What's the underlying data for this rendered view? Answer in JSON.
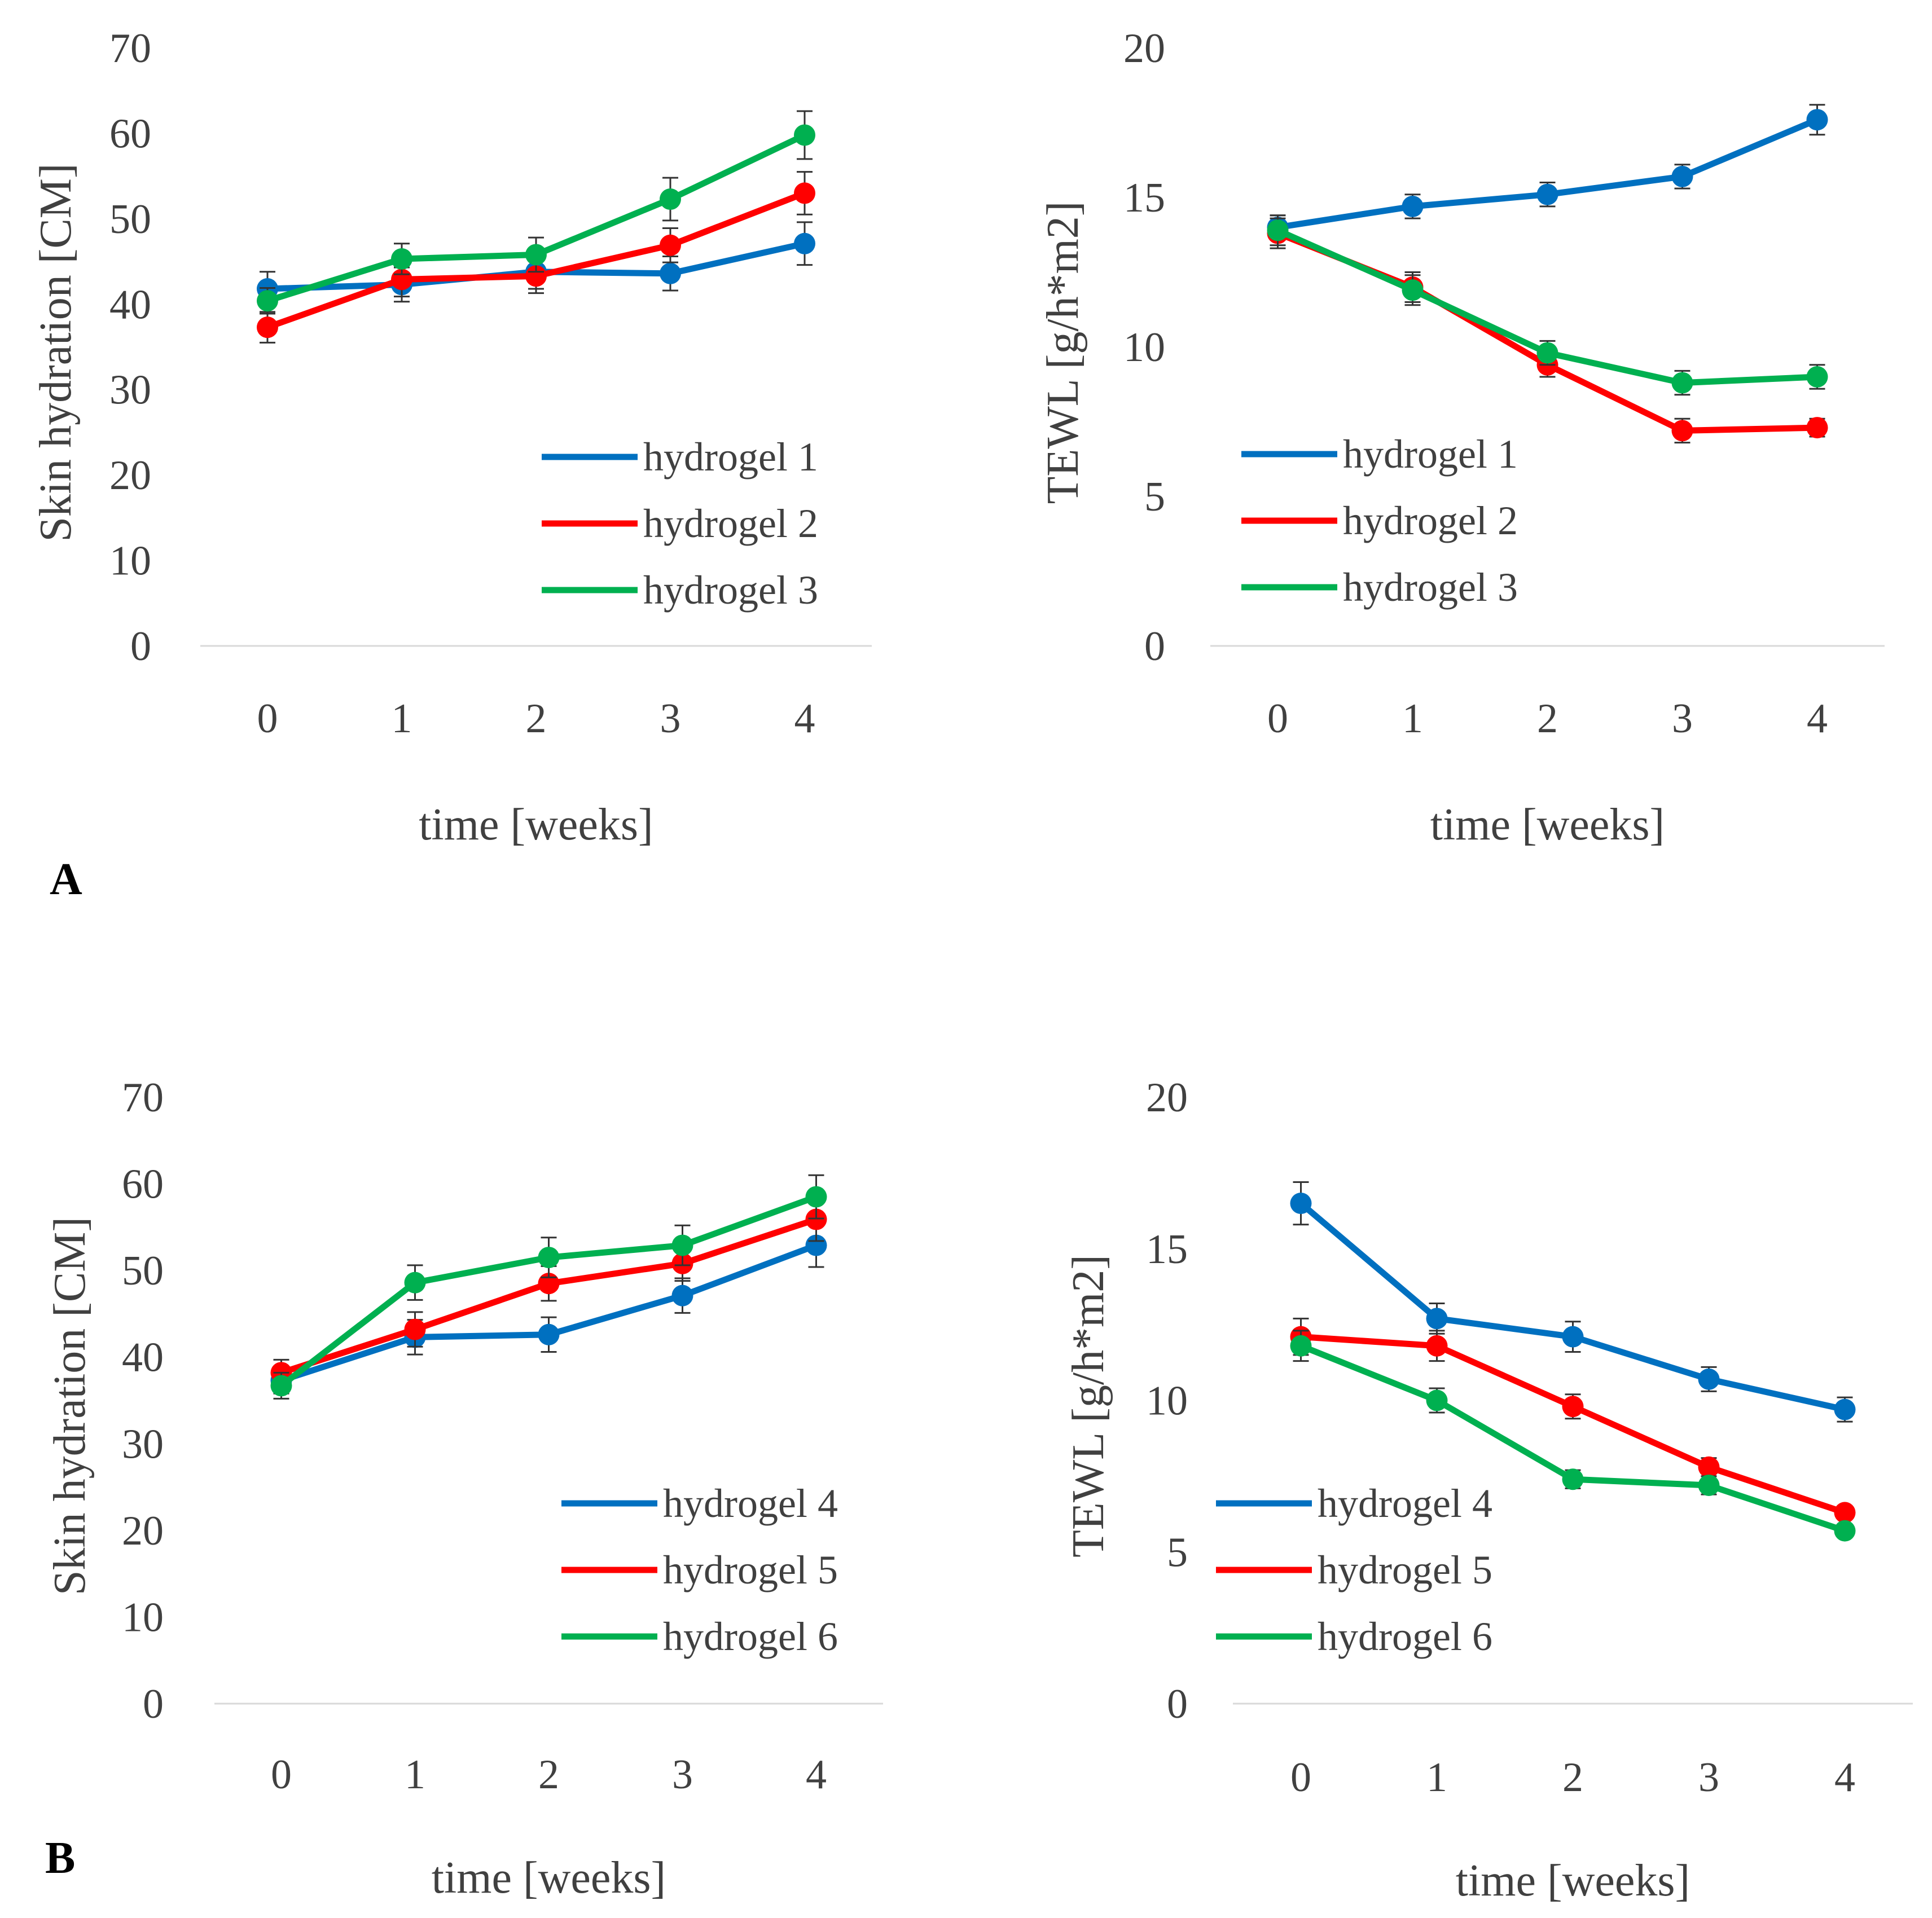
{
  "panel_labels": [
    "A",
    "B"
  ],
  "chart_data": [
    {
      "type": "line",
      "panel": "A",
      "title": "",
      "xlabel": "time [weeks]",
      "ylabel": "Skin hydration [CM]",
      "x": [
        0,
        1,
        2,
        3,
        4
      ],
      "ylim": [
        0,
        70
      ],
      "yticks": [
        0,
        10,
        20,
        30,
        40,
        50,
        60,
        70
      ],
      "legend": "right",
      "series": [
        {
          "name": "hydrogel 1",
          "color": "#0070C0",
          "values": [
            41.8,
            42.3,
            43.8,
            43.6,
            47.1
          ],
          "errors": [
            2.0,
            2.0,
            2.0,
            2.0,
            2.5
          ]
        },
        {
          "name": "hydrogel 2",
          "color": "#FF0000",
          "values": [
            37.3,
            42.9,
            43.3,
            46.9,
            53.0
          ],
          "errors": [
            1.8,
            2.0,
            2.0,
            2.0,
            2.5
          ]
        },
        {
          "name": "hydrogel 3",
          "color": "#00B050",
          "values": [
            40.4,
            45.3,
            45.8,
            52.3,
            59.8
          ],
          "errors": [
            1.5,
            1.8,
            2.0,
            2.5,
            2.8
          ]
        }
      ]
    },
    {
      "type": "line",
      "panel": "A",
      "title": "",
      "xlabel": "time [weeks]",
      "ylabel": "TEWL [g/h*m2]",
      "x": [
        0,
        1,
        2,
        3,
        4
      ],
      "ylim": [
        0,
        20
      ],
      "yticks": [
        0,
        5,
        10,
        15,
        20
      ],
      "legend": "left",
      "series": [
        {
          "name": "hydrogel 1",
          "color": "#0070C0",
          "values": [
            14.0,
            14.7,
            15.1,
            15.7,
            17.6
          ],
          "errors": [
            0.4,
            0.4,
            0.4,
            0.4,
            0.5
          ]
        },
        {
          "name": "hydrogel 2",
          "color": "#FF0000",
          "values": [
            13.8,
            12.0,
            9.4,
            7.2,
            7.3
          ],
          "errors": [
            0.5,
            0.5,
            0.4,
            0.4,
            0.3
          ]
        },
        {
          "name": "hydrogel 3",
          "color": "#00B050",
          "values": [
            13.9,
            11.9,
            9.8,
            8.8,
            9.0
          ],
          "errors": [
            0.5,
            0.5,
            0.4,
            0.4,
            0.4
          ]
        }
      ]
    },
    {
      "type": "line",
      "panel": "B",
      "title": "",
      "xlabel": "time [weeks]",
      "ylabel": "Skin hydration [CM]",
      "x": [
        0,
        1,
        2,
        3,
        4
      ],
      "ylim": [
        0,
        70
      ],
      "yticks": [
        0,
        10,
        20,
        30,
        40,
        50,
        60,
        70
      ],
      "legend": "right",
      "series": [
        {
          "name": "hydrogel 4",
          "color": "#0070C0",
          "values": [
            37.3,
            42.3,
            42.6,
            47.1,
            52.9
          ],
          "errors": [
            1.5,
            2.0,
            2.0,
            2.0,
            2.5
          ]
        },
        {
          "name": "hydrogel 5",
          "color": "#FF0000",
          "values": [
            38.2,
            43.2,
            48.5,
            50.8,
            55.9
          ],
          "errors": [
            1.5,
            2.0,
            2.0,
            2.0,
            2.5
          ]
        },
        {
          "name": "hydrogel 6",
          "color": "#00B050",
          "values": [
            36.7,
            48.6,
            51.5,
            52.9,
            58.5
          ],
          "errors": [
            1.5,
            2.0,
            2.3,
            2.3,
            2.5
          ]
        }
      ]
    },
    {
      "type": "line",
      "panel": "B",
      "title": "",
      "xlabel": "time [weeks]",
      "ylabel": "TEWL [g/h*m2]",
      "x": [
        0,
        1,
        2,
        3,
        4
      ],
      "ylim": [
        0,
        20
      ],
      "yticks": [
        0,
        5,
        10,
        15,
        20
      ],
      "legend": "left",
      "series": [
        {
          "name": "hydrogel 4",
          "color": "#0070C0",
          "values": [
            16.5,
            12.7,
            12.1,
            10.7,
            9.7
          ],
          "errors": [
            0.7,
            0.5,
            0.5,
            0.4,
            0.4
          ]
        },
        {
          "name": "hydrogel 5",
          "color": "#FF0000",
          "values": [
            12.1,
            11.8,
            9.8,
            7.8,
            6.3
          ],
          "errors": [
            0.6,
            0.5,
            0.4,
            0.3,
            0.2
          ]
        },
        {
          "name": "hydrogel 6",
          "color": "#00B050",
          "values": [
            11.8,
            10.0,
            7.4,
            7.2,
            5.7
          ],
          "errors": [
            0.5,
            0.4,
            0.3,
            0.3,
            0.2
          ]
        }
      ]
    }
  ]
}
